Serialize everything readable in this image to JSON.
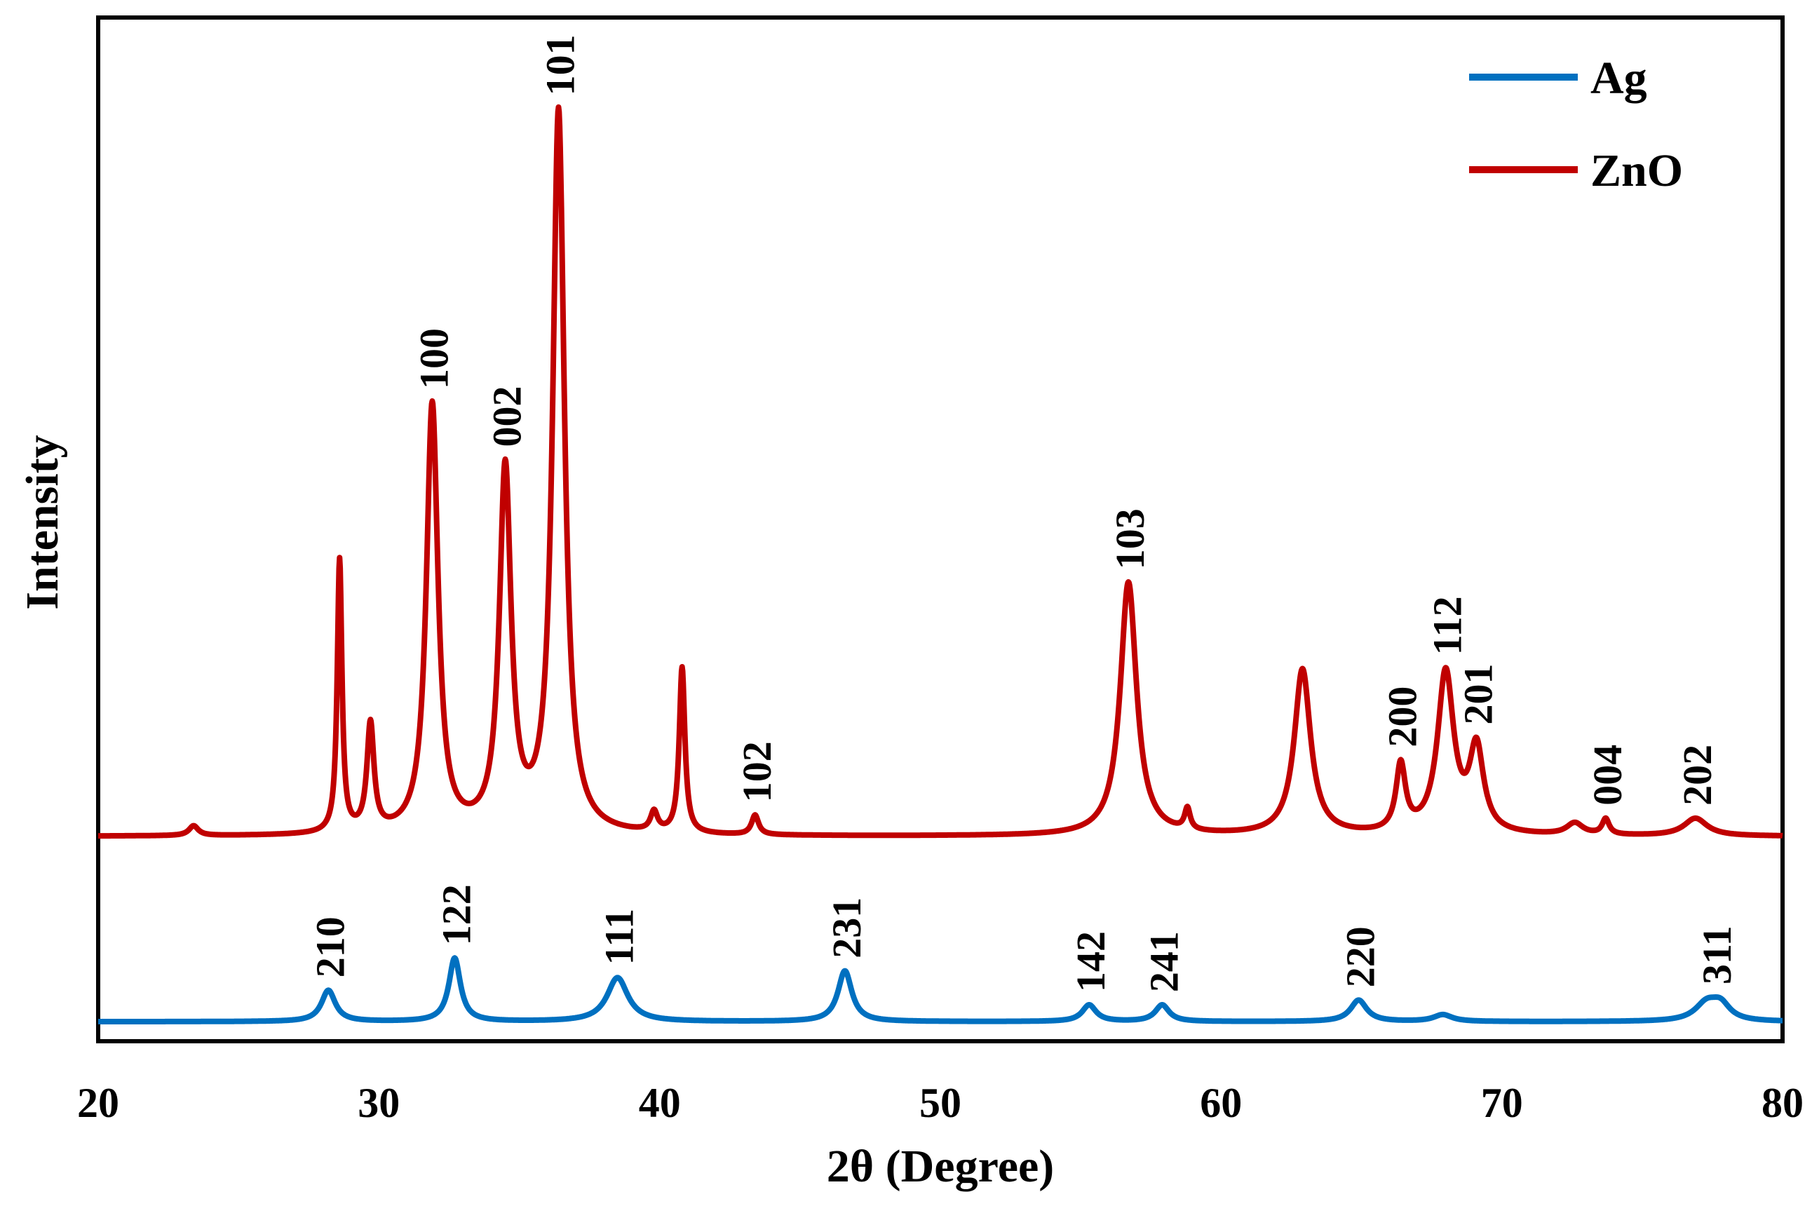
{
  "chart_data": {
    "type": "line",
    "title": "",
    "xlabel": "2θ (Degree)",
    "ylabel": "Intensity",
    "xlim": [
      20,
      80
    ],
    "ylim": [
      0,
      105
    ],
    "x_ticks": [
      "20",
      "30",
      "40",
      "50",
      "60",
      "70",
      "80"
    ],
    "x_tick_values": [
      20,
      30,
      40,
      50,
      60,
      70,
      80
    ],
    "grid": false,
    "legend_position": "top-right",
    "series": [
      {
        "name": "Ag",
        "color": "#0070c0",
        "baseline": 2.0,
        "peaks": [
          {
            "x": 28.2,
            "h": 3.2,
            "w": 0.3
          },
          {
            "x": 32.7,
            "h": 6.5,
            "w": 0.25
          },
          {
            "x": 38.5,
            "h": 4.5,
            "w": 0.45
          },
          {
            "x": 46.6,
            "h": 5.2,
            "w": 0.3
          },
          {
            "x": 55.3,
            "h": 1.7,
            "w": 0.3
          },
          {
            "x": 57.9,
            "h": 1.7,
            "w": 0.3
          },
          {
            "x": 64.9,
            "h": 2.2,
            "w": 0.35
          },
          {
            "x": 67.9,
            "h": 0.7,
            "w": 0.4
          },
          {
            "x": 77.3,
            "h": 1.8,
            "w": 0.5
          },
          {
            "x": 77.8,
            "h": 1.5,
            "w": 0.4
          }
        ],
        "annotations": [
          {
            "label": "210",
            "x": 28.2
          },
          {
            "label": "122",
            "x": 32.7
          },
          {
            "label": "111",
            "x": 38.5
          },
          {
            "label": "231",
            "x": 46.6
          },
          {
            "label": "142",
            "x": 55.3
          },
          {
            "label": "241",
            "x": 57.9
          },
          {
            "label": "220",
            "x": 64.9
          },
          {
            "label": "311",
            "x": 77.6
          }
        ]
      },
      {
        "name": "ZnO",
        "color": "#c00000",
        "baseline": 21.0,
        "peaks": [
          {
            "x": 23.4,
            "h": 1.0,
            "w": 0.2
          },
          {
            "x": 28.6,
            "h": 28.0,
            "w": 0.1
          },
          {
            "x": 29.7,
            "h": 11.0,
            "w": 0.15
          },
          {
            "x": 31.9,
            "h": 44.0,
            "w": 0.25
          },
          {
            "x": 34.5,
            "h": 37.0,
            "w": 0.25
          },
          {
            "x": 36.4,
            "h": 74.0,
            "w": 0.25
          },
          {
            "x": 39.8,
            "h": 2.0,
            "w": 0.15
          },
          {
            "x": 40.8,
            "h": 17.0,
            "w": 0.12
          },
          {
            "x": 43.4,
            "h": 2.0,
            "w": 0.15
          },
          {
            "x": 56.7,
            "h": 26.0,
            "w": 0.35
          },
          {
            "x": 58.8,
            "h": 2.2,
            "w": 0.12
          },
          {
            "x": 62.9,
            "h": 17.0,
            "w": 0.35
          },
          {
            "x": 66.4,
            "h": 6.8,
            "w": 0.2
          },
          {
            "x": 68.0,
            "h": 16.5,
            "w": 0.35
          },
          {
            "x": 69.1,
            "h": 8.5,
            "w": 0.3
          },
          {
            "x": 72.6,
            "h": 1.2,
            "w": 0.35
          },
          {
            "x": 73.7,
            "h": 1.6,
            "w": 0.15
          },
          {
            "x": 76.9,
            "h": 1.8,
            "w": 0.5
          }
        ],
        "annotations": [
          {
            "label": "100",
            "x": 31.9
          },
          {
            "label": "002",
            "x": 34.5
          },
          {
            "label": "101",
            "x": 36.4
          },
          {
            "label": "102",
            "x": 43.4
          },
          {
            "label": "103",
            "x": 56.7
          },
          {
            "label": "200",
            "x": 66.4
          },
          {
            "label": "112",
            "x": 68.0
          },
          {
            "label": "201",
            "x": 69.1
          },
          {
            "label": "004",
            "x": 73.7
          },
          {
            "label": "202",
            "x": 76.9
          }
        ]
      }
    ]
  }
}
